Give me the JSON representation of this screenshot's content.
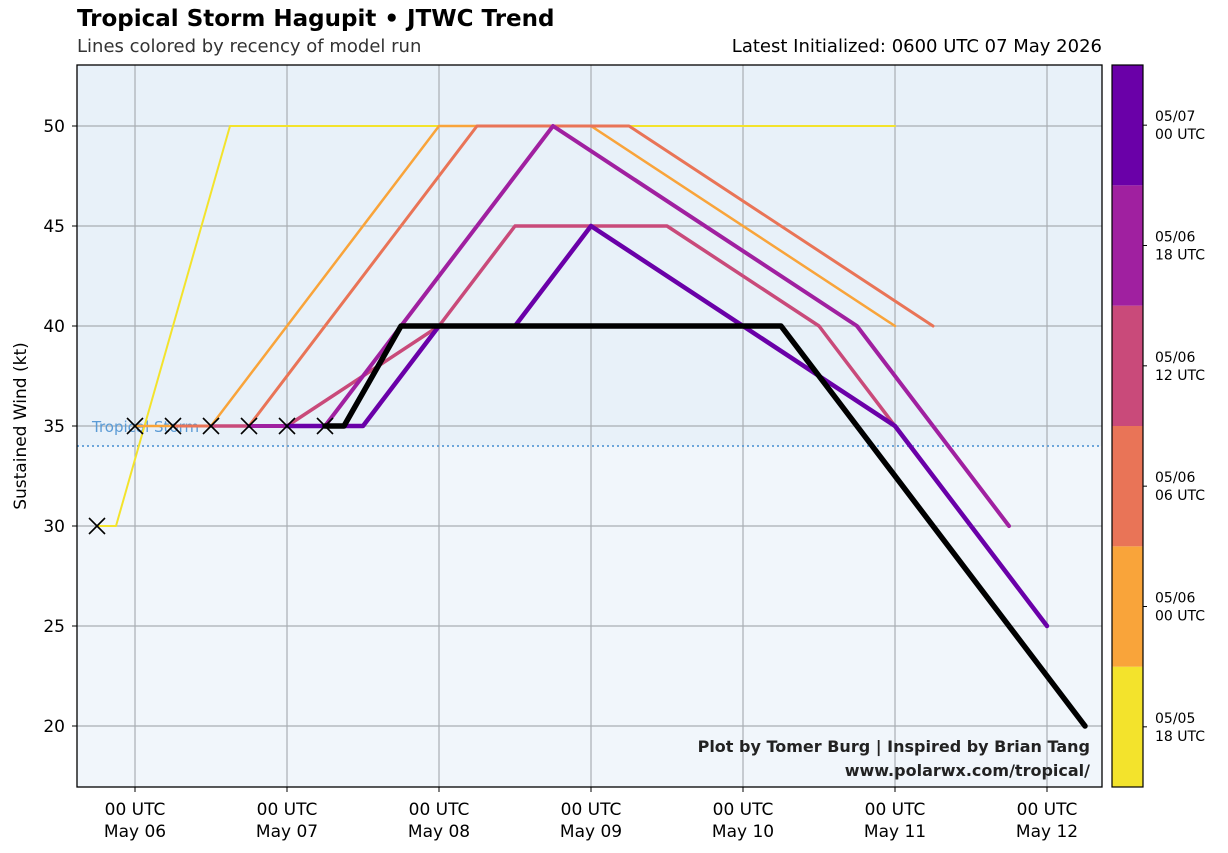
{
  "header": {
    "title": "Tropical Storm Hagupit • JTWC Trend",
    "subtitle": "Lines colored by recency of model run",
    "latest_initialized": "Latest Initialized: 0600 UTC 07 May 2026"
  },
  "credits": {
    "line1": "Plot by Tomer Burg | Inspired by Brian Tang",
    "line2": "www.polarwx.com/tropical/"
  },
  "threshold": {
    "label": "Tropical Storm",
    "value": 34,
    "color": "#5b9bd5"
  },
  "chart_data": {
    "type": "line",
    "ylabel": "Sustained Wind (kt)",
    "ylim": [
      17,
      53
    ],
    "x_unit": "hours since 00 UTC May 06",
    "xlim": [
      -10,
      260
    ],
    "y_ticks": [
      20,
      25,
      30,
      35,
      40,
      45,
      50
    ],
    "x_ticks": [
      {
        "x": 0,
        "label": "00 UTC",
        "label2": "May 06"
      },
      {
        "x": 48,
        "label": "00 UTC",
        "label2": "May 07"
      },
      {
        "x": 96,
        "label": "00 UTC",
        "label2": "May 08"
      },
      {
        "x": 144,
        "label": "00 UTC",
        "label2": "May 09"
      },
      {
        "x": 192,
        "label": "00 UTC",
        "label2": "May 10"
      },
      {
        "x": 240,
        "label": "00 UTC",
        "label2": "May 11"
      },
      {
        "x": 288,
        "label": "00 UTC",
        "label2": "May 12"
      }
    ],
    "grid": true,
    "series": [
      {
        "run": "05/05 18 UTC",
        "color": "#f3e32c",
        "width": 2,
        "points": [
          [
            -12,
            30
          ],
          [
            -6,
            30
          ],
          [
            30,
            50
          ],
          [
            96,
            50
          ],
          [
            144,
            50
          ],
          [
            240,
            50
          ]
        ]
      },
      {
        "run": "05/06 00 UTC",
        "color": "#f9a43a",
        "width": 2.5,
        "points": [
          [
            0,
            35
          ],
          [
            24,
            35
          ],
          [
            96,
            50
          ],
          [
            144,
            50
          ],
          [
            240,
            40
          ]
        ]
      },
      {
        "run": "05/06 06 UTC",
        "color": "#e97457",
        "width": 3,
        "points": [
          [
            12,
            35
          ],
          [
            36,
            35
          ],
          [
            108,
            50
          ],
          [
            156,
            50
          ],
          [
            252,
            40
          ]
        ]
      },
      {
        "run": "05/06 12 UTC",
        "color": "#c94a7a",
        "width": 3.5,
        "points": [
          [
            24,
            35
          ],
          [
            48,
            35
          ],
          [
            96,
            40
          ],
          [
            120,
            45
          ],
          [
            168,
            45
          ],
          [
            216,
            40
          ],
          [
            240,
            35
          ]
        ]
      },
      {
        "run": "05/06 18 UTC",
        "color": "#a020a0",
        "width": 4,
        "points": [
          [
            36,
            35
          ],
          [
            60,
            35
          ],
          [
            132,
            50
          ],
          [
            228,
            40
          ],
          [
            276,
            30
          ]
        ]
      },
      {
        "run": "05/07 00 UTC",
        "color": "#6a00a8",
        "width": 4.5,
        "points": [
          [
            48,
            35
          ],
          [
            72,
            35
          ],
          [
            96,
            40
          ],
          [
            120,
            40
          ],
          [
            144,
            45
          ],
          [
            192,
            40
          ],
          [
            216,
            37.5
          ],
          [
            240,
            35
          ],
          [
            288,
            25
          ]
        ]
      },
      {
        "run": "05/07 06 UTC",
        "color": "#000000",
        "width": 5.5,
        "points": [
          [
            60,
            35
          ],
          [
            66,
            35
          ],
          [
            84,
            40
          ],
          [
            204,
            40
          ],
          [
            228,
            35
          ],
          [
            300,
            20
          ]
        ]
      }
    ],
    "observed_markers": [
      [
        -12,
        30
      ],
      [
        0,
        35
      ],
      [
        12,
        35
      ],
      [
        24,
        35
      ],
      [
        36,
        35
      ],
      [
        48,
        35
      ],
      [
        60,
        35
      ]
    ],
    "colorbar": {
      "labels": [
        "05/05 18 UTC",
        "05/06 00 UTC",
        "05/06 06 UTC",
        "05/06 12 UTC",
        "05/06 18 UTC",
        "05/07 00 UTC"
      ],
      "colors": [
        "#f3e32c",
        "#f9a43a",
        "#e97457",
        "#c94a7a",
        "#a020a0",
        "#6a00a8"
      ]
    }
  }
}
